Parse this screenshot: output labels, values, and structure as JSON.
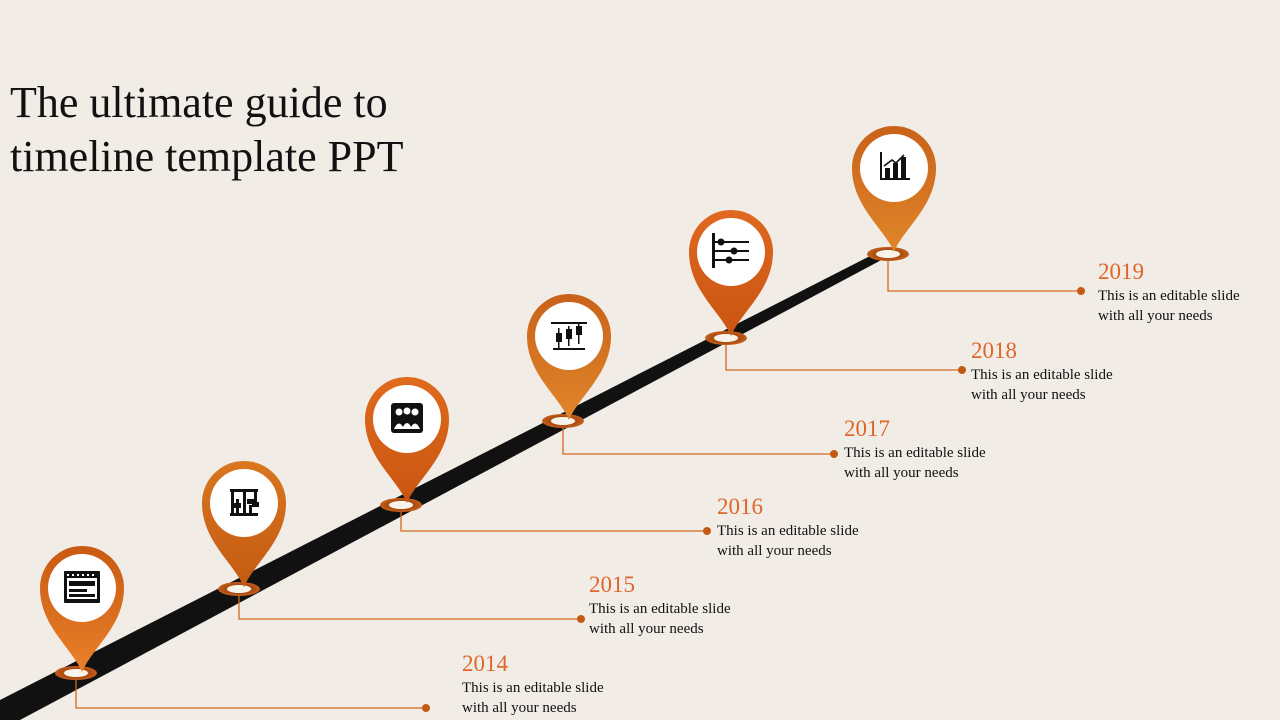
{
  "title": {
    "line1": "The ultimate guide to",
    "line2": "timeline template PPT"
  },
  "colors": {
    "accent": "#e0662a",
    "pin_dark": "#c45a12",
    "pin_light": "#e38a2a",
    "road": "#111111",
    "background": "#f1ece6"
  },
  "milestones": [
    {
      "year": "2014",
      "desc_line1": "This is an editable slide",
      "desc_line2": "with all your needs",
      "icon": "calendar-board-icon"
    },
    {
      "year": "2015",
      "desc_line1": "This is an editable slide",
      "desc_line2": "with all your needs",
      "icon": "equalizer-icon"
    },
    {
      "year": "2016",
      "desc_line1": "This is an editable slide",
      "desc_line2": "with all your needs",
      "icon": "team-icon"
    },
    {
      "year": "2017",
      "desc_line1": "This is an editable slide",
      "desc_line2": "with all your needs",
      "icon": "candlestick-chart-icon"
    },
    {
      "year": "2018",
      "desc_line1": "This is an editable slide",
      "desc_line2": "with all your needs",
      "icon": "slider-controls-icon"
    },
    {
      "year": "2019",
      "desc_line1": "This is an editable slide",
      "desc_line2": "with all your needs",
      "icon": "growth-bar-chart-icon"
    }
  ]
}
